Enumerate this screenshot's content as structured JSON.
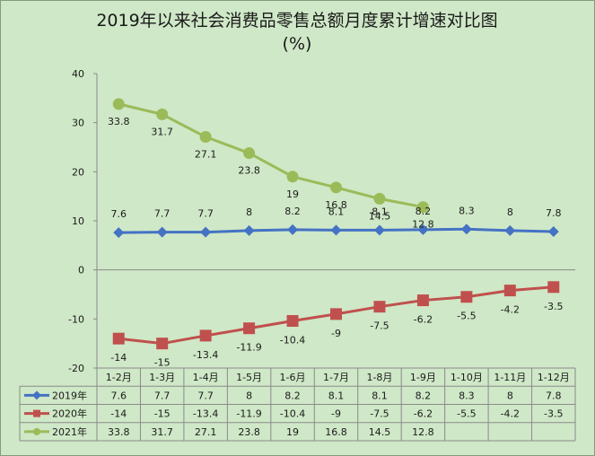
{
  "chart_data": {
    "type": "line",
    "title": "2019年以来社会消费品零售总额月度累计增速对比图",
    "subtitle": "(%)",
    "categories": [
      "1-2月",
      "1-3月",
      "1-4月",
      "1-5月",
      "1-6月",
      "1-7月",
      "1-8月",
      "1-9月",
      "1-10月",
      "1-11月",
      "1-12月"
    ],
    "ylim": [
      -20,
      40
    ],
    "yticks": [
      -20,
      -10,
      0,
      10,
      20,
      30,
      40
    ],
    "grid": false,
    "legend": "data-table",
    "series": [
      {
        "name": "2019年",
        "color": "#4472c4",
        "marker": "diamond",
        "values": [
          7.6,
          7.7,
          7.7,
          8,
          8.2,
          8.1,
          8.1,
          8.2,
          8.3,
          8,
          7.8
        ]
      },
      {
        "name": "2020年",
        "color": "#c0504d",
        "marker": "square",
        "values": [
          -14,
          -15,
          -13.4,
          -11.9,
          -10.4,
          -9,
          -7.5,
          -6.2,
          -5.5,
          -4.2,
          -3.5
        ]
      },
      {
        "name": "2021年",
        "color": "#9bbb59",
        "marker": "circle",
        "values": [
          33.8,
          31.7,
          27.1,
          23.8,
          19,
          16.8,
          14.5,
          12.8,
          null,
          null,
          null
        ]
      }
    ]
  }
}
